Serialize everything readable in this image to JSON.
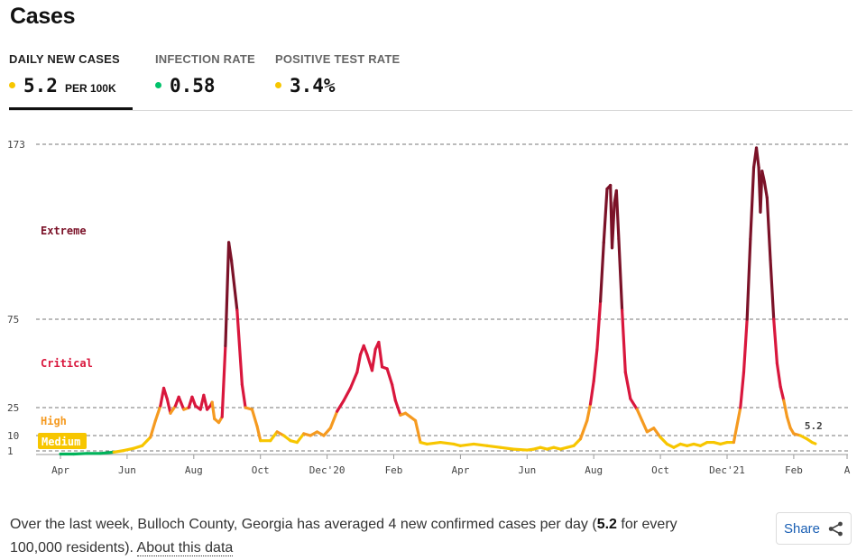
{
  "header": {
    "title": "Cases"
  },
  "tabs": [
    {
      "label": "DAILY NEW CASES",
      "value": "5.2",
      "unit": "PER 100K",
      "dot_color": "#f7c600",
      "active": true
    },
    {
      "label": "INFECTION RATE",
      "value": "0.58",
      "unit": "",
      "dot_color": "#00c26b",
      "active": false
    },
    {
      "label": "POSITIVE TEST RATE",
      "value": "3.4%",
      "unit": "",
      "dot_color": "#f7c600",
      "active": false
    }
  ],
  "footer": {
    "text_before": "Over the last week, Bulloch County, Georgia has averaged 4 new confirmed cases per day (",
    "value": "5.2",
    "text_after": " for every 100,000 residents).",
    "about_link": "About this data",
    "share_label": "Share"
  },
  "chart_data": {
    "type": "line",
    "y_ticks": [
      "173",
      "75",
      "25",
      "10",
      "1"
    ],
    "y_tick_values": [
      173,
      75,
      25,
      10,
      1
    ],
    "x_ticks": [
      "Apr",
      "Jun",
      "Aug",
      "Oct",
      "Dec'20",
      "Feb",
      "Apr",
      "Jun",
      "Aug",
      "Oct",
      "Dec'21",
      "Feb",
      "A"
    ],
    "x_tick_positions": [
      0,
      2,
      4,
      6,
      8,
      10,
      12,
      14,
      16,
      18,
      20,
      22,
      23.6
    ],
    "zones": [
      {
        "label": "Extreme",
        "min": 75,
        "color": "#7b1228"
      },
      {
        "label": "Critical",
        "min": 25,
        "color": "#d9173d"
      },
      {
        "label": "High",
        "min": 10,
        "color": "#f59a20"
      },
      {
        "label": "Medium",
        "min": 1,
        "color": "#f7c600"
      },
      {
        "label": "",
        "min": 0,
        "color": "#00b35a"
      }
    ],
    "last_label": "5.2",
    "series": [
      {
        "values": [
          [
            0.0,
            0.5
          ],
          [
            0.4,
            0.5
          ],
          [
            0.8,
            0.6
          ],
          [
            1.2,
            0.6
          ],
          [
            1.6,
            0.8
          ],
          [
            1.9,
            1.2
          ],
          [
            2.2,
            2.5
          ],
          [
            2.45,
            4
          ],
          [
            2.7,
            9
          ],
          [
            2.85,
            18
          ],
          [
            3.0,
            26
          ],
          [
            3.1,
            36
          ],
          [
            3.2,
            30
          ],
          [
            3.3,
            22
          ],
          [
            3.45,
            26
          ],
          [
            3.55,
            31
          ],
          [
            3.7,
            24
          ],
          [
            3.85,
            25
          ],
          [
            3.95,
            31
          ],
          [
            4.05,
            26
          ],
          [
            4.2,
            24
          ],
          [
            4.3,
            32
          ],
          [
            4.4,
            24
          ],
          [
            4.5,
            26
          ],
          [
            4.55,
            28
          ],
          [
            4.62,
            19
          ],
          [
            4.75,
            17
          ],
          [
            4.85,
            20
          ],
          [
            4.95,
            60
          ],
          [
            5.05,
            118
          ],
          [
            5.13,
            108
          ],
          [
            5.3,
            80
          ],
          [
            5.45,
            38
          ],
          [
            5.55,
            25
          ],
          [
            5.75,
            24
          ],
          [
            5.9,
            15
          ],
          [
            6.0,
            7
          ],
          [
            6.3,
            7
          ],
          [
            6.5,
            12
          ],
          [
            6.7,
            10
          ],
          [
            6.9,
            7
          ],
          [
            7.1,
            6
          ],
          [
            7.3,
            11
          ],
          [
            7.5,
            10
          ],
          [
            7.7,
            12
          ],
          [
            7.9,
            10
          ],
          [
            8.1,
            14
          ],
          [
            8.3,
            23
          ],
          [
            8.5,
            29
          ],
          [
            8.7,
            36
          ],
          [
            8.9,
            45
          ],
          [
            9.0,
            55
          ],
          [
            9.1,
            60
          ],
          [
            9.2,
            55
          ],
          [
            9.35,
            46
          ],
          [
            9.45,
            58
          ],
          [
            9.55,
            62
          ],
          [
            9.65,
            48
          ],
          [
            9.8,
            47
          ],
          [
            9.95,
            38
          ],
          [
            10.05,
            29
          ],
          [
            10.2,
            21
          ],
          [
            10.35,
            22
          ],
          [
            10.5,
            20
          ],
          [
            10.65,
            18
          ],
          [
            10.8,
            6
          ],
          [
            11.0,
            5
          ],
          [
            11.4,
            6
          ],
          [
            11.8,
            5
          ],
          [
            12.0,
            4
          ],
          [
            12.4,
            5
          ],
          [
            12.8,
            4
          ],
          [
            13.2,
            3
          ],
          [
            13.6,
            2
          ],
          [
            14.0,
            1.5
          ],
          [
            14.2,
            2
          ],
          [
            14.4,
            3
          ],
          [
            14.6,
            2
          ],
          [
            14.8,
            3
          ],
          [
            15.0,
            2
          ],
          [
            15.2,
            3
          ],
          [
            15.4,
            4
          ],
          [
            15.6,
            8
          ],
          [
            15.8,
            18
          ],
          [
            15.9,
            27
          ],
          [
            16.0,
            40
          ],
          [
            16.1,
            58
          ],
          [
            16.2,
            85
          ],
          [
            16.3,
            118
          ],
          [
            16.4,
            148
          ],
          [
            16.5,
            150
          ],
          [
            16.55,
            115
          ],
          [
            16.62,
            140
          ],
          [
            16.68,
            147
          ],
          [
            16.75,
            120
          ],
          [
            16.85,
            80
          ],
          [
            16.95,
            45
          ],
          [
            17.1,
            30
          ],
          [
            17.3,
            24
          ],
          [
            17.45,
            18
          ],
          [
            17.6,
            12
          ],
          [
            17.8,
            14
          ],
          [
            18.0,
            9
          ],
          [
            18.2,
            5
          ],
          [
            18.4,
            3
          ],
          [
            18.6,
            5
          ],
          [
            18.8,
            4
          ],
          [
            19.0,
            5
          ],
          [
            19.2,
            4
          ],
          [
            19.4,
            6
          ],
          [
            19.6,
            6
          ],
          [
            19.8,
            5
          ],
          [
            20.0,
            6
          ],
          [
            20.2,
            6
          ],
          [
            20.4,
            25
          ],
          [
            20.5,
            45
          ],
          [
            20.6,
            75
          ],
          [
            20.7,
            120
          ],
          [
            20.8,
            160
          ],
          [
            20.88,
            171
          ],
          [
            20.95,
            160
          ],
          [
            21.0,
            135
          ],
          [
            21.05,
            158
          ],
          [
            21.12,
            152
          ],
          [
            21.2,
            143
          ],
          [
            21.3,
            108
          ],
          [
            21.4,
            75
          ],
          [
            21.5,
            50
          ],
          [
            21.6,
            37
          ],
          [
            21.7,
            29
          ],
          [
            21.8,
            20
          ],
          [
            21.9,
            14
          ],
          [
            22.0,
            11
          ],
          [
            22.2,
            10
          ],
          [
            22.4,
            8
          ],
          [
            22.55,
            6
          ],
          [
            22.65,
            5.2
          ]
        ]
      }
    ]
  }
}
